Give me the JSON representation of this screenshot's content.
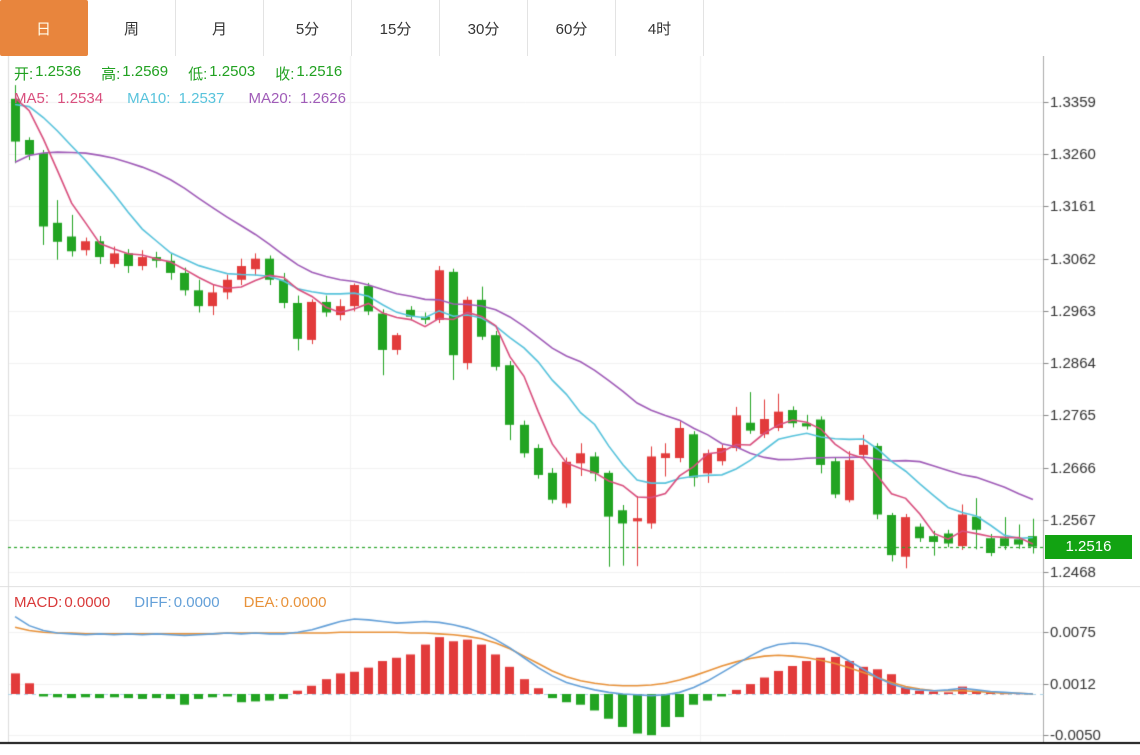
{
  "tabs": {
    "items": [
      {
        "label": "日",
        "active": true
      },
      {
        "label": "周",
        "active": false
      },
      {
        "label": "月",
        "active": false
      },
      {
        "label": "5分",
        "active": false
      },
      {
        "label": "15分",
        "active": false
      },
      {
        "label": "30分",
        "active": false
      },
      {
        "label": "60分",
        "active": false
      },
      {
        "label": "4时",
        "active": false
      }
    ]
  },
  "legend": {
    "ohlc": [
      {
        "label": "开:",
        "value": "1.2536"
      },
      {
        "label": "高:",
        "value": "1.2569"
      },
      {
        "label": "低:",
        "value": "1.2503"
      },
      {
        "label": "收:",
        "value": "1.2516"
      }
    ],
    "ma": [
      {
        "label": "MA5:",
        "value": "1.2534"
      },
      {
        "label": "MA10:",
        "value": "1.2537"
      },
      {
        "label": "MA20:",
        "value": "1.2626"
      }
    ],
    "macd": [
      {
        "label": "MACD:",
        "value": "0.0000"
      },
      {
        "label": "DIFF:",
        "value": "0.0000"
      },
      {
        "label": "DEA:",
        "value": "0.0000"
      }
    ]
  },
  "colors": {
    "up_red": "#e23b3b",
    "down_green": "#22a422",
    "ma5_pink": "#d94f7e",
    "ma10_cyan": "#58c3dc",
    "ma20_purple": "#a05cb8",
    "diff_blue": "#64a0d8",
    "dea_orange": "#e8923a",
    "ohlc_green": "#21a121",
    "badge_green": "#12a312",
    "price_line_green": "#2aa52a",
    "active_tab_orange": "#e8853d",
    "grid": "#f2f2f2",
    "axis_line": "#aaaaaa",
    "tick": "#888888",
    "axis_text": "#333333",
    "zero_dash_blue": "#aed4e8",
    "bottom_bar_black": "#111111"
  },
  "chart_data": [
    {
      "type": "candlestick",
      "title": "",
      "xlabel": "",
      "ylabel": "",
      "convention": "red = up, green = down",
      "y_ticks": [
        1.3359,
        1.326,
        1.3161,
        1.3062,
        1.2963,
        1.2864,
        1.2765,
        1.2666,
        1.2567,
        1.2468
      ],
      "y_tick_labels": [
        "1.3359",
        "1.3260",
        "1.3161",
        "1.3062",
        "1.2963",
        "1.2864",
        "1.2765",
        "1.2666",
        "1.2567",
        "1.2468"
      ],
      "ylim": [
        1.2441,
        1.3446
      ],
      "grid": true,
      "current_price": 1.2516,
      "last_price_label": "1.2516",
      "price_line": 1.2516,
      "ma_periods": [
        5,
        10,
        20
      ],
      "ma_warmup_closes": [
        1.3,
        1.303,
        1.306,
        1.309,
        1.312,
        1.315,
        1.318,
        1.321,
        1.324,
        1.327,
        1.33,
        1.333,
        1.335,
        1.336,
        1.337,
        1.338,
        1.339,
        1.3395,
        1.3385
      ],
      "candles_ohlc": [
        [
          1.3365,
          1.3391,
          1.3243,
          1.3284
        ],
        [
          1.3287,
          1.3292,
          1.3249,
          1.3259
        ],
        [
          1.3262,
          1.3268,
          1.3088,
          1.3123
        ],
        [
          1.313,
          1.3173,
          1.306,
          1.3094
        ],
        [
          1.3104,
          1.3145,
          1.3066,
          1.3076
        ],
        [
          1.3078,
          1.3102,
          1.3068,
          1.3095
        ],
        [
          1.3095,
          1.3105,
          1.3052,
          1.3065
        ],
        [
          1.3052,
          1.3085,
          1.3045,
          1.3072
        ],
        [
          1.3072,
          1.308,
          1.3035,
          1.3048
        ],
        [
          1.3048,
          1.3078,
          1.304,
          1.3065
        ],
        [
          1.3065,
          1.3075,
          1.3045,
          1.3058
        ],
        [
          1.3058,
          1.3072,
          1.3022,
          1.3035
        ],
        [
          1.3035,
          1.3045,
          1.2992,
          1.3002
        ],
        [
          1.3002,
          1.3022,
          1.296,
          1.2972
        ],
        [
          1.2972,
          1.3012,
          1.2955,
          1.2998
        ],
        [
          1.2998,
          1.3032,
          1.2985,
          1.3022
        ],
        [
          1.3022,
          1.3062,
          1.3012,
          1.3048
        ],
        [
          1.3042,
          1.3072,
          1.303,
          1.3062
        ],
        [
          1.3062,
          1.3068,
          1.3012,
          1.3022
        ],
        [
          1.3022,
          1.3035,
          1.2968,
          1.2978
        ],
        [
          1.2978,
          1.2992,
          1.2888,
          1.291
        ],
        [
          1.2908,
          1.2985,
          1.29,
          1.298
        ],
        [
          1.298,
          1.2992,
          1.2952,
          1.296
        ],
        [
          1.2955,
          1.2985,
          1.2945,
          1.2972
        ],
        [
          1.2972,
          1.3015,
          1.2962,
          1.3012
        ],
        [
          1.301,
          1.3016,
          1.2955,
          1.2962
        ],
        [
          1.2958,
          1.2966,
          1.2841,
          1.2889
        ],
        [
          1.2889,
          1.2921,
          1.288,
          1.2917
        ],
        [
          1.2965,
          1.2972,
          1.2945,
          1.2952
        ],
        [
          1.2952,
          1.296,
          1.2938,
          1.2946
        ],
        [
          1.2946,
          1.3048,
          1.294,
          1.304
        ],
        [
          1.3037,
          1.3043,
          1.2832,
          1.2879
        ],
        [
          1.2864,
          1.299,
          1.2852,
          1.2984
        ],
        [
          1.2984,
          1.3009,
          1.2908,
          1.2914
        ],
        [
          1.2917,
          1.2925,
          1.285,
          1.2857
        ],
        [
          1.286,
          1.2868,
          1.2718,
          1.2747
        ],
        [
          1.2747,
          1.2755,
          1.2685,
          1.2693
        ],
        [
          1.2703,
          1.271,
          1.2645,
          1.2652
        ],
        [
          1.2656,
          1.2665,
          1.2598,
          1.2605
        ],
        [
          1.2598,
          1.2685,
          1.259,
          1.2677
        ],
        [
          1.2674,
          1.2712,
          1.265,
          1.2693
        ],
        [
          1.2687,
          1.2695,
          1.264,
          1.2655
        ],
        [
          1.2656,
          1.266,
          1.2478,
          1.2573
        ],
        [
          1.2585,
          1.2595,
          1.248,
          1.256
        ],
        [
          1.2564,
          1.2612,
          1.2479,
          1.257
        ],
        [
          1.256,
          1.2706,
          1.255,
          1.2687
        ],
        [
          1.2684,
          1.2712,
          1.2649,
          1.2693
        ],
        [
          1.2684,
          1.2754,
          1.2676,
          1.2741
        ],
        [
          1.2729,
          1.2735,
          1.263,
          1.2647
        ],
        [
          1.2655,
          1.27,
          1.2637,
          1.2693
        ],
        [
          1.2678,
          1.271,
          1.267,
          1.2703
        ],
        [
          1.2703,
          1.2781,
          1.2697,
          1.2765
        ],
        [
          1.2751,
          1.2809,
          1.273,
          1.2736
        ],
        [
          1.2729,
          1.2795,
          1.2722,
          1.2758
        ],
        [
          1.2741,
          1.2806,
          1.2735,
          1.2772
        ],
        [
          1.2775,
          1.2782,
          1.2742,
          1.275
        ],
        [
          1.275,
          1.2766,
          1.2738,
          1.2744
        ],
        [
          1.2757,
          1.2763,
          1.2655,
          1.2671
        ],
        [
          1.2678,
          1.2685,
          1.2608,
          1.2615
        ],
        [
          1.2604,
          1.2697,
          1.26,
          1.268
        ],
        [
          1.269,
          1.2728,
          1.2683,
          1.2709
        ],
        [
          1.2707,
          1.2712,
          1.2568,
          1.2577
        ],
        [
          1.2576,
          1.258,
          1.2488,
          1.25
        ],
        [
          1.2497,
          1.2578,
          1.2475,
          1.2572
        ],
        [
          1.2554,
          1.256,
          1.2525,
          1.2532
        ],
        [
          1.2536,
          1.2546,
          1.2499,
          1.2525
        ],
        [
          1.2541,
          1.2548,
          1.2515,
          1.2522
        ],
        [
          1.2517,
          1.2596,
          1.251,
          1.2577
        ],
        [
          1.2573,
          1.2608,
          1.2511,
          1.2548
        ],
        [
          1.2532,
          1.254,
          1.2498,
          1.2504
        ],
        [
          1.2532,
          1.2572,
          1.251,
          1.2517
        ],
        [
          1.253,
          1.2558,
          1.2512,
          1.252
        ],
        [
          1.2536,
          1.2569,
          1.2503,
          1.2516
        ]
      ]
    },
    {
      "type": "bar",
      "title": "MACD(12,26,9)",
      "y_ticks": [
        0.0075,
        0.0012,
        -0.005
      ],
      "y_tick_labels": [
        "0.0075",
        "0.0012",
        "-0.0050"
      ],
      "grid": true,
      "histogram": [
        0.0025,
        0.0013,
        -0.0003,
        -0.0004,
        -0.0005,
        -0.0004,
        -0.0005,
        -0.0004,
        -0.0005,
        -0.0006,
        -0.0005,
        -0.0006,
        -0.0013,
        -0.0006,
        -0.0004,
        -0.0003,
        -0.001,
        -0.0009,
        -0.0008,
        -0.0006,
        0.0004,
        0.001,
        0.0018,
        0.0025,
        0.0027,
        0.0032,
        0.004,
        0.0044,
        0.0048,
        0.006,
        0.0069,
        0.0064,
        0.0066,
        0.006,
        0.0048,
        0.0033,
        0.0018,
        0.0007,
        -0.0005,
        -0.001,
        -0.0013,
        -0.002,
        -0.003,
        -0.004,
        -0.0048,
        -0.005,
        -0.004,
        -0.0028,
        -0.0013,
        -0.0008,
        -0.0003,
        0.0005,
        0.0012,
        0.002,
        0.0028,
        0.0034,
        0.004,
        0.0044,
        0.0045,
        0.004,
        0.0033,
        0.003,
        0.0024,
        0.0008,
        0.0004,
        0.0003,
        0.0002,
        0.0009,
        0.0004,
        0.0002,
        0.0001,
        0.0001,
        0.0
      ],
      "diff": [
        0.0094,
        0.0083,
        0.0077,
        0.0074,
        0.0073,
        0.0072,
        0.0073,
        0.0072,
        0.0073,
        0.0072,
        0.0073,
        0.0072,
        0.0071,
        0.0072,
        0.0073,
        0.0074,
        0.0073,
        0.0074,
        0.0073,
        0.0073,
        0.0075,
        0.0078,
        0.0083,
        0.0088,
        0.0091,
        0.009,
        0.0088,
        0.0086,
        0.0087,
        0.0088,
        0.0087,
        0.0084,
        0.008,
        0.0074,
        0.0066,
        0.0056,
        0.0044,
        0.0032,
        0.0022,
        0.0014,
        0.0009,
        0.0005,
        0.0002,
        0.0,
        -0.0001,
        -0.0002,
        -0.0001,
        0.0002,
        0.0008,
        0.0016,
        0.0026,
        0.0036,
        0.0046,
        0.0055,
        0.006,
        0.0062,
        0.0061,
        0.0057,
        0.005,
        0.004,
        0.003,
        0.002,
        0.0012,
        0.0007,
        0.0005,
        0.0004,
        0.0005,
        0.0007,
        0.0005,
        0.0003,
        0.0002,
        0.0001,
        0.0
      ],
      "dea": [
        0.0081,
        0.0077,
        0.0075,
        0.0074,
        0.0074,
        0.0073,
        0.0073,
        0.0073,
        0.0073,
        0.0073,
        0.0073,
        0.0073,
        0.0073,
        0.0073,
        0.0073,
        0.0074,
        0.0074,
        0.0074,
        0.0074,
        0.0074,
        0.0074,
        0.0074,
        0.0074,
        0.0075,
        0.0075,
        0.0075,
        0.0075,
        0.0075,
        0.0074,
        0.0074,
        0.0073,
        0.0072,
        0.007,
        0.0067,
        0.0062,
        0.0055,
        0.0046,
        0.0037,
        0.0028,
        0.0021,
        0.0016,
        0.0013,
        0.0011,
        0.001,
        0.001,
        0.0011,
        0.0013,
        0.0017,
        0.0022,
        0.0028,
        0.0034,
        0.0039,
        0.0043,
        0.0046,
        0.0047,
        0.0046,
        0.0044,
        0.0041,
        0.0037,
        0.0032,
        0.0026,
        0.002,
        0.0014,
        0.0009,
        0.0006,
        0.0004,
        0.0004,
        0.0004,
        0.0003,
        0.0002,
        0.0001,
        0.0001,
        0.0
      ]
    }
  ]
}
